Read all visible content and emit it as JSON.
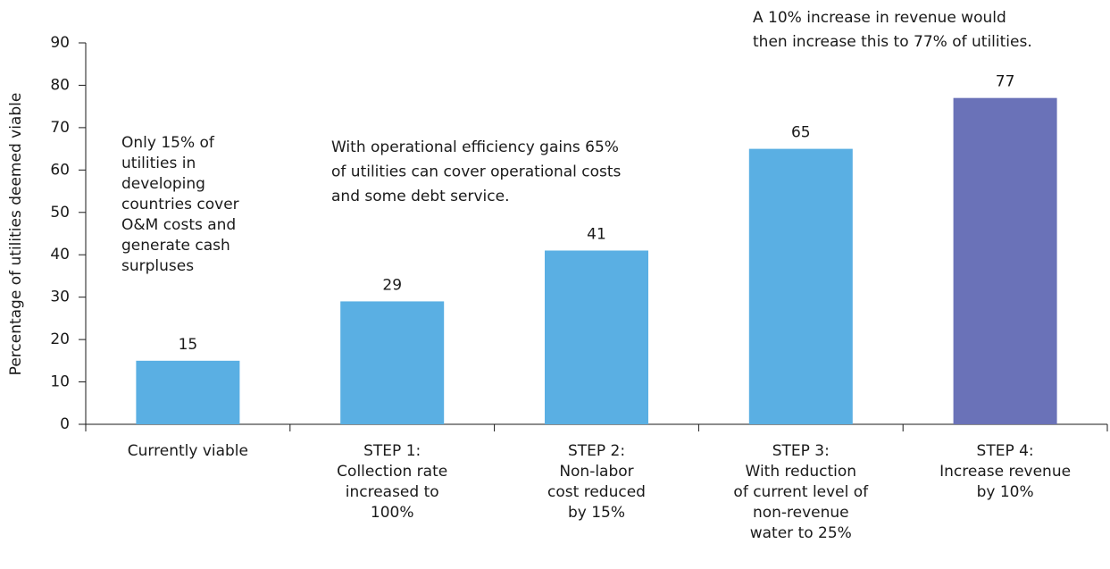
{
  "chart_data": {
    "type": "bar",
    "y_label": "Percentage of utilities deemed viable",
    "categories": [
      "Currently viable",
      "STEP 1:\nCollection rate\nincreased to\n100%",
      "STEP 2:\nNon-labor\ncost reduced\nby 15%",
      "STEP 3:\nWith reduction\nof current level of\nnon-revenue\nwater to 25%",
      "STEP 4:\nIncrease revenue\nby 10%"
    ],
    "values": [
      15,
      29,
      41,
      65,
      77
    ],
    "colors": [
      "#5aafe3",
      "#5aafe3",
      "#5aafe3",
      "#5aafe3",
      "#6a72b8"
    ],
    "ylim": [
      0,
      90
    ],
    "yticks": [
      0,
      10,
      20,
      30,
      40,
      50,
      60,
      70,
      80,
      90
    ],
    "grid": false,
    "annotations": [
      {
        "lines": [
          "Only 15% of",
          "utilities in",
          "developing",
          "countries cover",
          "O&M costs and",
          "generate cash",
          "surpluses"
        ]
      },
      {
        "lines": [
          "With operational efficiency gains 65%",
          "of utilities can cover operational costs",
          "and some debt service."
        ]
      },
      {
        "lines": [
          "A 10% increase in revenue would",
          "then increase this to 77% of utilities."
        ]
      }
    ]
  }
}
